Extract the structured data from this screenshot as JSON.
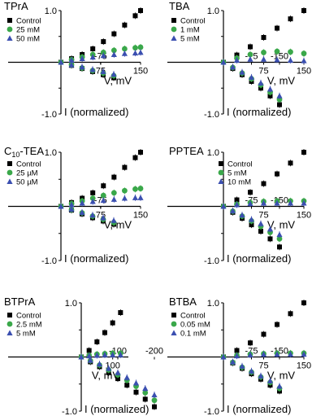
{
  "colors": {
    "control": "#000000",
    "mid": "#3aa84a",
    "high": "#3b4fb0"
  },
  "chart_data": [
    {
      "type": "line",
      "title": "TPrA",
      "xlabel": "V, mV",
      "ylabel": "I (normalized)",
      "xlim": [
        -100,
        150
      ],
      "ylim": [
        -1.0,
        1.0
      ],
      "xticks": [
        "-75",
        "75",
        "150"
      ],
      "yticks": [
        "1.0",
        "0.5",
        "-0.5",
        "-1.0"
      ],
      "legend": "top-left",
      "x": [
        -100,
        -80,
        -60,
        -40,
        -20,
        0,
        20,
        40,
        60,
        80,
        100,
        120,
        140,
        150
      ],
      "series": [
        {
          "name": "Control",
          "marker": "square",
          "values": [
            -0.3,
            -0.24,
            -0.18,
            -0.12,
            -0.06,
            0.0,
            0.07,
            0.15,
            0.26,
            0.4,
            0.55,
            0.72,
            0.9,
            1.0
          ]
        },
        {
          "name": "25 mM",
          "marker": "circle",
          "values": [
            -0.26,
            -0.21,
            -0.16,
            -0.11,
            -0.05,
            0.0,
            0.05,
            0.1,
            0.15,
            0.19,
            0.23,
            0.26,
            0.28,
            0.29
          ]
        },
        {
          "name": "50 mM",
          "marker": "triangle",
          "values": [
            -0.23,
            -0.18,
            -0.14,
            -0.09,
            -0.05,
            0.0,
            0.04,
            0.07,
            0.1,
            0.13,
            0.15,
            0.17,
            0.18,
            0.19
          ]
        }
      ]
    },
    {
      "type": "line",
      "title": "TBA",
      "xlabel": "V, mV",
      "ylabel": "I (normalized)",
      "xlim": [
        -150,
        150
      ],
      "ylim": [
        -1.0,
        1.0
      ],
      "xticks": [
        "-150",
        "-75",
        "75",
        "150"
      ],
      "yticks": [
        "1.0",
        "0.5",
        "-0.5",
        "-1.0"
      ],
      "legend": "top-left",
      "x": [
        -150,
        -125,
        -100,
        -75,
        -50,
        -25,
        0,
        25,
        50,
        75,
        100,
        125,
        150
      ],
      "series": [
        {
          "name": "Control",
          "marker": "square",
          "values": [
            -0.82,
            -0.65,
            -0.5,
            -0.37,
            -0.24,
            -0.12,
            0.0,
            0.14,
            0.3,
            0.48,
            0.66,
            0.84,
            1.0
          ]
        },
        {
          "name": "1 mM",
          "marker": "circle",
          "values": [
            -0.72,
            -0.58,
            -0.44,
            -0.32,
            -0.21,
            -0.1,
            0.0,
            0.08,
            0.15,
            0.19,
            0.21,
            0.2,
            0.17
          ]
        },
        {
          "name": "5 mM",
          "marker": "triangle",
          "values": [
            -0.65,
            -0.52,
            -0.4,
            -0.29,
            -0.19,
            -0.09,
            0.0,
            0.04,
            0.06,
            0.06,
            0.05,
            0.04,
            0.03
          ]
        }
      ]
    },
    {
      "type": "line",
      "title": "C10-TEA",
      "xlabel": "V, mV",
      "ylabel": "I (normalized)",
      "xlim": [
        -100,
        150
      ],
      "ylim": [
        -1.0,
        1.0
      ],
      "xticks": [
        "-75",
        "75",
        "150"
      ],
      "yticks": [
        "1.0",
        "0.5",
        "-0.5",
        "-1.0"
      ],
      "legend": "top-left",
      "x": [
        -100,
        -80,
        -60,
        -40,
        -20,
        0,
        20,
        40,
        60,
        80,
        100,
        120,
        140,
        150
      ],
      "series": [
        {
          "name": "Control",
          "marker": "square",
          "values": [
            -0.33,
            -0.27,
            -0.21,
            -0.14,
            -0.07,
            0.0,
            0.07,
            0.15,
            0.25,
            0.38,
            0.54,
            0.72,
            0.9,
            1.0
          ]
        },
        {
          "name": "25 µM",
          "marker": "circle",
          "values": [
            -0.3,
            -0.24,
            -0.18,
            -0.12,
            -0.06,
            0.0,
            0.05,
            0.1,
            0.15,
            0.2,
            0.25,
            0.29,
            0.32,
            0.33
          ]
        },
        {
          "name": "50 µM",
          "marker": "triangle",
          "values": [
            -0.26,
            -0.21,
            -0.16,
            -0.11,
            -0.05,
            0.0,
            0.03,
            0.06,
            0.09,
            0.11,
            0.13,
            0.15,
            0.16,
            0.16
          ]
        }
      ]
    },
    {
      "type": "line",
      "title": "PPTEA",
      "xlabel": "V, mV",
      "ylabel": "I (normalized)",
      "xlim": [
        -150,
        150
      ],
      "ylim": [
        -1.0,
        1.0
      ],
      "xticks": [
        "-150",
        "-75",
        "75",
        "150"
      ],
      "yticks": [
        "1.0",
        "0.5",
        "-0.5",
        "-1.0"
      ],
      "legend": "top-right",
      "x": [
        -150,
        -125,
        -100,
        -75,
        -50,
        -25,
        0,
        25,
        50,
        75,
        100,
        125,
        150
      ],
      "series": [
        {
          "name": "Control",
          "marker": "square",
          "values": [
            -0.75,
            -0.6,
            -0.46,
            -0.34,
            -0.22,
            -0.11,
            0.0,
            0.12,
            0.26,
            0.42,
            0.6,
            0.8,
            1.0
          ]
        },
        {
          "name": "5 mM",
          "marker": "circle",
          "values": [
            -0.6,
            -0.48,
            -0.37,
            -0.27,
            -0.18,
            -0.09,
            0.0,
            0.04,
            0.07,
            0.09,
            0.1,
            0.1,
            0.1
          ]
        },
        {
          "name": "10 mM",
          "marker": "triangle",
          "values": [
            -0.52,
            -0.42,
            -0.32,
            -0.24,
            -0.16,
            -0.08,
            0.0,
            0.03,
            0.05,
            0.06,
            0.06,
            0.06,
            0.06
          ]
        }
      ]
    },
    {
      "type": "line",
      "title": "BTPrA",
      "xlabel": "V, mV",
      "ylabel": "I (normalized)",
      "xlim": [
        -200,
        150
      ],
      "ylim": [
        -1.0,
        1.0
      ],
      "xticks": [
        "-200",
        "-100",
        "100"
      ],
      "yticks": [
        "1.0",
        "0.5",
        "-0.5",
        "-1.0"
      ],
      "legend": "top-left",
      "x": [
        -200,
        -175,
        -150,
        -125,
        -100,
        -75,
        -50,
        -25,
        0,
        25,
        50,
        75,
        100,
        125
      ],
      "series": [
        {
          "name": "Control",
          "marker": "square",
          "values": [
            -0.92,
            -0.78,
            -0.65,
            -0.52,
            -0.4,
            -0.29,
            -0.18,
            -0.09,
            0.0,
            0.12,
            0.28,
            0.45,
            0.63,
            0.82
          ]
        },
        {
          "name": "2.5 mM",
          "marker": "circle",
          "values": [
            -0.8,
            -0.66,
            -0.54,
            -0.43,
            -0.33,
            -0.24,
            -0.15,
            -0.07,
            0.0,
            0.03,
            0.05,
            0.06,
            0.07,
            0.07
          ]
        },
        {
          "name": "5 mM",
          "marker": "triangle",
          "values": [
            -0.7,
            -0.58,
            -0.48,
            -0.38,
            -0.29,
            -0.21,
            -0.13,
            -0.06,
            0.0,
            0.02,
            0.03,
            0.04,
            0.04,
            0.04
          ]
        }
      ]
    },
    {
      "type": "line",
      "title": "BTBA",
      "xlabel": "V, mV",
      "ylabel": "I (normalized)",
      "xlim": [
        -150,
        150
      ],
      "ylim": [
        -1.0,
        1.0
      ],
      "xticks": [
        "-150",
        "-75",
        "75",
        "150"
      ],
      "yticks": [
        "1.0",
        "0.5",
        "-0.5",
        "-1.0"
      ],
      "legend": "top-left",
      "x": [
        -150,
        -125,
        -100,
        -75,
        -50,
        -25,
        0,
        25,
        50,
        75,
        100,
        125,
        150
      ],
      "series": [
        {
          "name": "Control",
          "marker": "square",
          "values": [
            -0.63,
            -0.52,
            -0.41,
            -0.31,
            -0.21,
            -0.11,
            0.0,
            0.12,
            0.26,
            0.42,
            0.6,
            0.8,
            1.0
          ]
        },
        {
          "name": "0.05 mM",
          "marker": "circle",
          "values": [
            -0.58,
            -0.47,
            -0.37,
            -0.28,
            -0.19,
            -0.1,
            0.0,
            0.03,
            0.05,
            0.06,
            0.07,
            0.07,
            0.07
          ]
        },
        {
          "name": "0.1 mM",
          "marker": "triangle",
          "values": [
            -0.54,
            -0.44,
            -0.35,
            -0.26,
            -0.17,
            -0.09,
            0.0,
            0.02,
            0.04,
            0.05,
            0.05,
            0.05,
            0.05
          ]
        }
      ]
    }
  ]
}
